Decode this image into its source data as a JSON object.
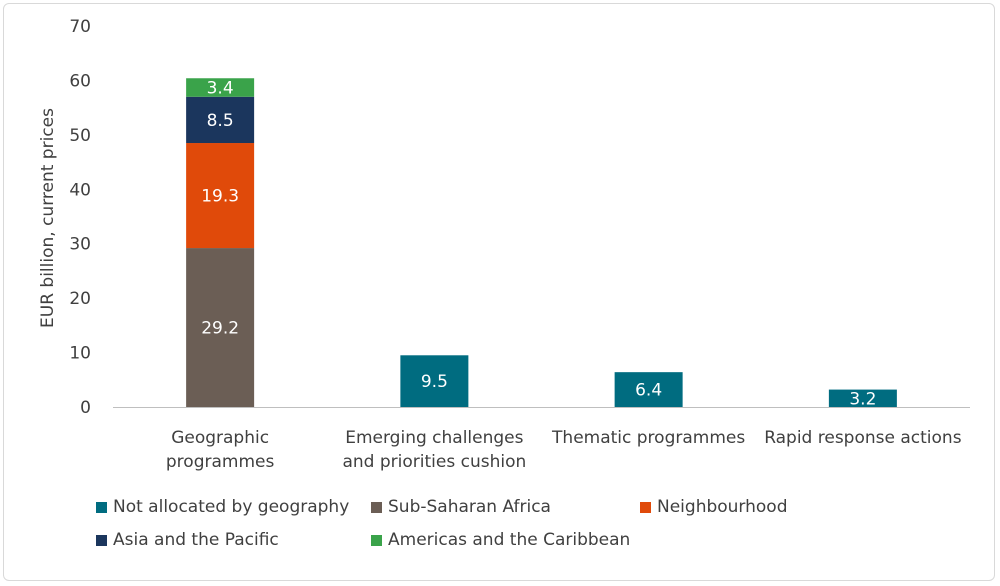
{
  "chart_data": {
    "type": "bar",
    "stacked": true,
    "title": "",
    "xlabel": "",
    "ylabel": "EUR billion, current prices",
    "ylim": [
      0,
      70
    ],
    "yticks": [
      0,
      10,
      20,
      30,
      40,
      50,
      60,
      70
    ],
    "grid": false,
    "legend_position": "bottom",
    "categories": [
      [
        "Geographic",
        "programmes"
      ],
      [
        "Emerging challenges",
        "and priorities cushion"
      ],
      [
        "Thematic programmes"
      ],
      [
        "Rapid response actions"
      ]
    ],
    "series": [
      {
        "name": "Not allocated by geography",
        "color": "#006C80",
        "values": [
          null,
          9.5,
          6.4,
          3.2
        ]
      },
      {
        "name": "Sub-Saharan Africa",
        "color": "#6B5E55",
        "values": [
          29.2,
          null,
          null,
          null
        ]
      },
      {
        "name": "Neighbourhood",
        "color": "#E04A0A",
        "values": [
          19.3,
          null,
          null,
          null
        ]
      },
      {
        "name": "Asia and the Pacific",
        "color": "#1B365D",
        "values": [
          8.5,
          null,
          null,
          null
        ]
      },
      {
        "name": "Americas and the Caribbean",
        "color": "#3AA34A",
        "values": [
          3.4,
          null,
          null,
          null
        ]
      }
    ]
  }
}
